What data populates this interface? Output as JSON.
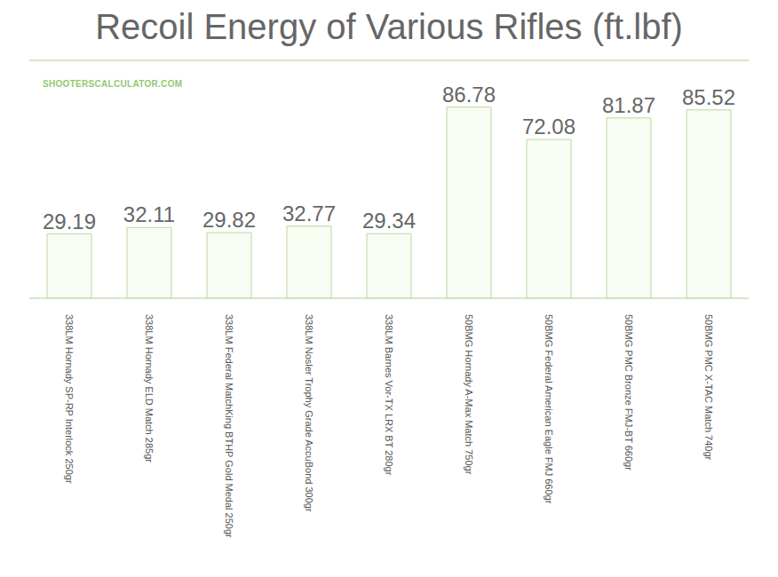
{
  "chart_data": {
    "type": "bar",
    "title": "Recoil Energy of Various Rifles (ft.lbf)",
    "annotations": [
      "SHOOTERSCALCULATOR.COM"
    ],
    "categories": [
      "338LM Hornady SP-RP Interlock 250gr",
      "338LM Hornady ELD Match 285gr",
      "338LM Federal MatchKing BTHP Gold Medal 250gr",
      "338LM Nosler Trophy Grade AccuBond 300gr",
      "338LM Barnes Vor-TX LRX BT 280gr",
      "50BMG Hornady A-Max Match 750gr",
      "50BMG Federal American Eagle FMJ 660gr",
      "50BMG PMC Bronze FMJ-BT 660gr",
      "50BMG PMC X-TAC Match 740gr"
    ],
    "values": [
      29.19,
      32.11,
      29.82,
      32.77,
      29.34,
      86.78,
      72.08,
      81.87,
      85.52
    ],
    "color": "#f8fcf3",
    "ylim": [
      0,
      108
    ],
    "yticks": [
      0,
      21.6,
      43.2,
      64.8,
      86.4,
      108
    ],
    "grid": true,
    "data_labels": true,
    "tick_labels": "x"
  }
}
